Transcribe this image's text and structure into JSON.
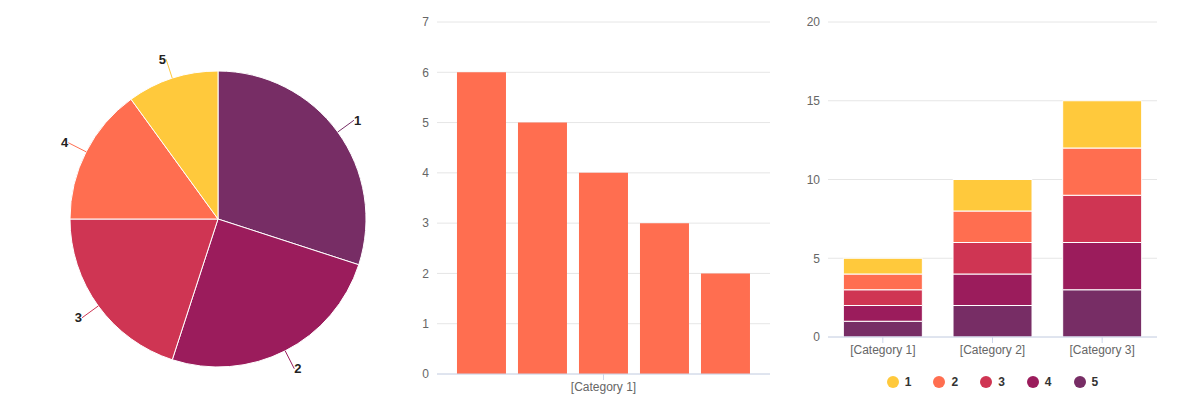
{
  "chart_data": [
    {
      "type": "pie",
      "categories": [
        "1",
        "2",
        "3",
        "4",
        "5"
      ],
      "values": [
        30,
        25,
        20,
        15,
        10
      ],
      "colors": [
        "#772d65",
        "#9b1c5c",
        "#cf3553",
        "#ff6e50",
        "#ffc93c"
      ]
    },
    {
      "type": "bar",
      "categories": [
        "[Category 1]"
      ],
      "series": [
        {
          "color": "#ff6e50",
          "values": [
            6
          ]
        },
        {
          "color": "#ff6e50",
          "values": [
            5
          ]
        },
        {
          "color": "#ff6e50",
          "values": [
            4
          ]
        },
        {
          "color": "#ff6e50",
          "values": [
            3
          ]
        },
        {
          "color": "#ff6e50",
          "values": [
            2
          ]
        }
      ],
      "ylim": [
        0,
        7
      ],
      "yticks": [
        0,
        1,
        2,
        3,
        4,
        5,
        6,
        7
      ],
      "grid": true
    },
    {
      "type": "bar",
      "stacked": true,
      "categories": [
        "[Category 1]",
        "[Category 2]",
        "[Category 3]"
      ],
      "series": [
        {
          "name": "1",
          "color": "#ffc93c",
          "values": [
            1,
            2,
            3
          ]
        },
        {
          "name": "2",
          "color": "#ff6e50",
          "values": [
            1,
            2,
            3
          ]
        },
        {
          "name": "3",
          "color": "#cf3553",
          "values": [
            1,
            2,
            3
          ]
        },
        {
          "name": "4",
          "color": "#9b1c5c",
          "values": [
            1,
            2,
            3
          ]
        },
        {
          "name": "5",
          "color": "#772d65",
          "values": [
            1,
            2,
            3
          ]
        }
      ],
      "ylim": [
        0,
        20
      ],
      "yticks": [
        0,
        5,
        10,
        15,
        20
      ],
      "grid": true,
      "legend": "bottom"
    }
  ]
}
